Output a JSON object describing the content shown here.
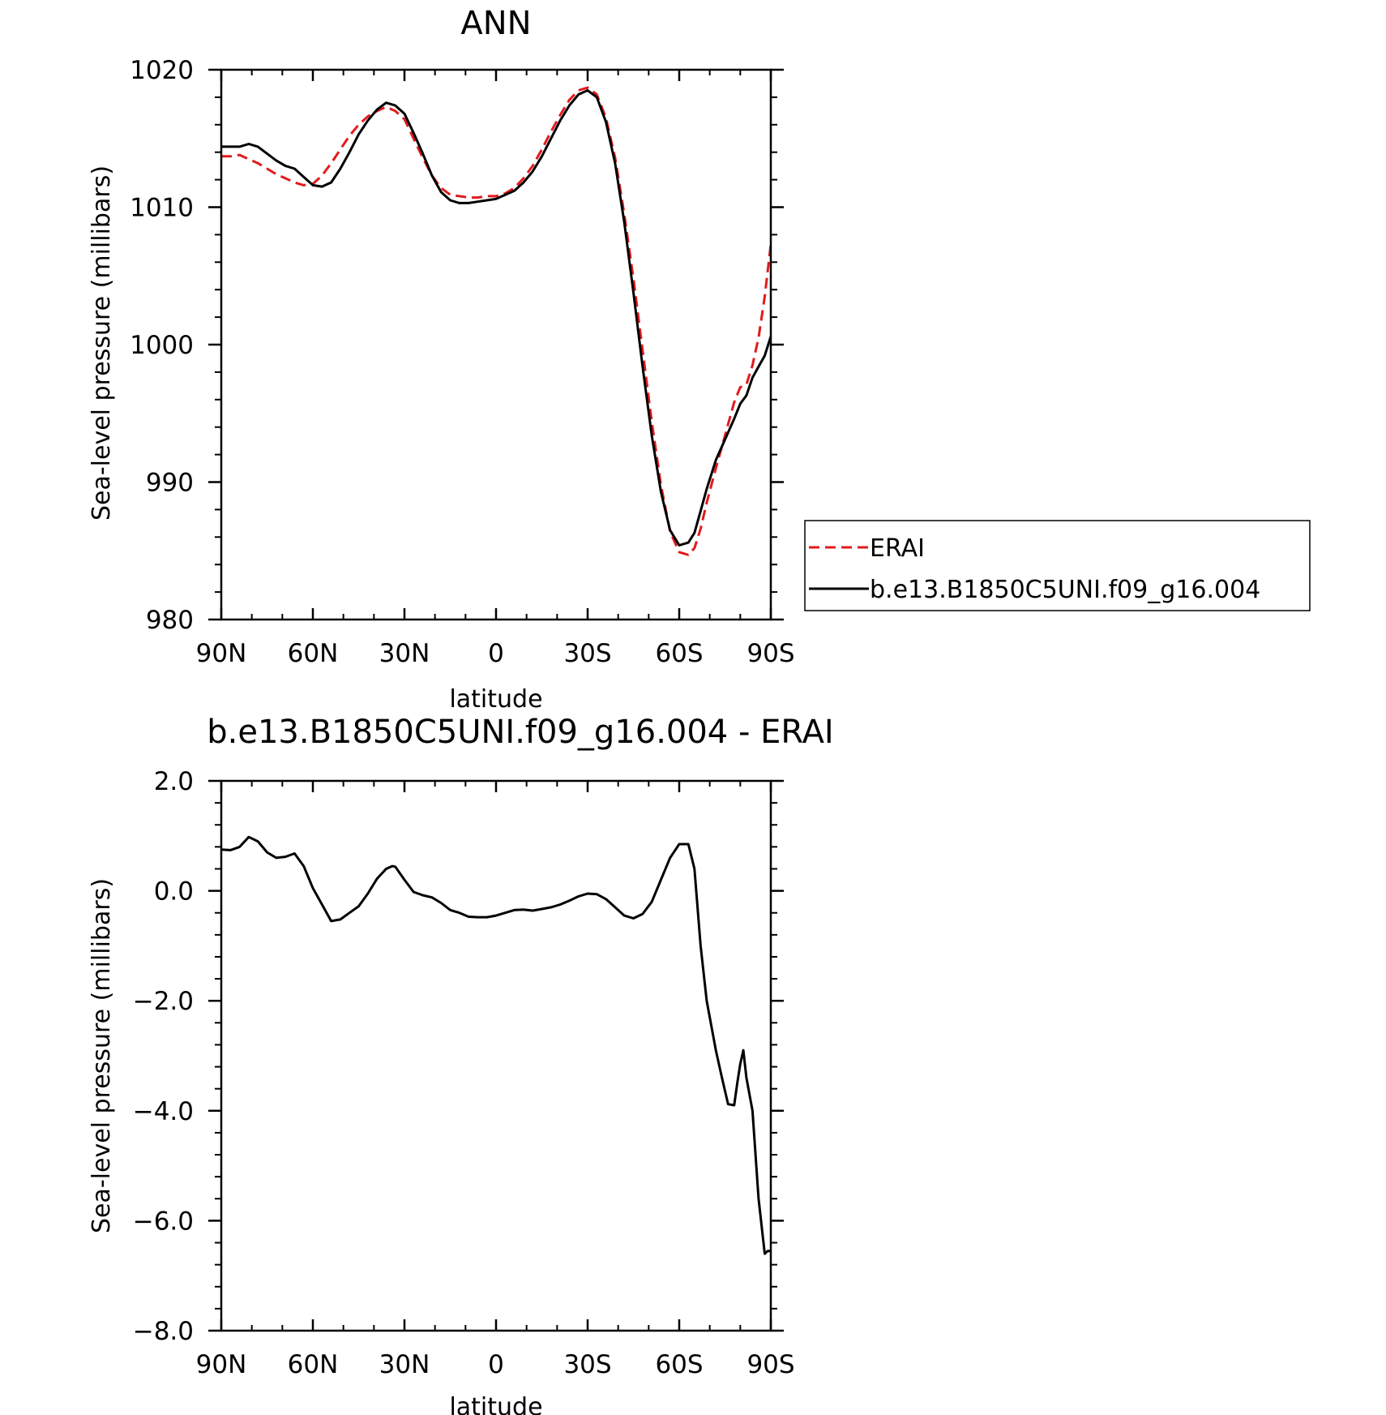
{
  "chart_data": [
    {
      "type": "line",
      "title": "ANN",
      "xlabel": "latitude",
      "ylabel": "Sea-level pressure (millibars)",
      "x_range": [
        90,
        -90
      ],
      "xticks": [
        90,
        60,
        30,
        0,
        -30,
        -60,
        -90
      ],
      "xtick_labels": [
        "90N",
        "60N",
        "30N",
        "0",
        "30S",
        "60S",
        "90S"
      ],
      "ylim": [
        980,
        1020
      ],
      "yticks": [
        980,
        990,
        1000,
        1010,
        1020
      ],
      "ytick_labels": [
        "980",
        "990",
        "1000",
        "1010",
        "1020"
      ],
      "grid": false,
      "legend_position": "right",
      "series": [
        {
          "name": "ERAI",
          "color": "#e31a1c",
          "dash": "dashed",
          "x": [
            90,
            87,
            84,
            81,
            78,
            75,
            72,
            69,
            66,
            63,
            60,
            57,
            54,
            51,
            48,
            45,
            42,
            39,
            36,
            33,
            30,
            27,
            24,
            21,
            18,
            15,
            12,
            9,
            6,
            3,
            0,
            -3,
            -6,
            -9,
            -12,
            -15,
            -18,
            -21,
            -24,
            -27,
            -30,
            -33,
            -36,
            -39,
            -42,
            -45,
            -48,
            -51,
            -54,
            -57,
            -60,
            -63,
            -65,
            -67,
            -69,
            -72,
            -75,
            -78,
            -80,
            -82,
            -84,
            -86,
            -88,
            -90
          ],
          "y": [
            1013.7,
            1013.7,
            1013.8,
            1013.5,
            1013.2,
            1012.8,
            1012.4,
            1012.1,
            1011.8,
            1011.6,
            1011.7,
            1012.3,
            1013.2,
            1014.2,
            1015.2,
            1016.0,
            1016.6,
            1017.0,
            1017.3,
            1017.0,
            1016.4,
            1015.0,
            1013.6,
            1012.3,
            1011.4,
            1010.9,
            1010.8,
            1010.7,
            1010.7,
            1010.8,
            1010.8,
            1011.0,
            1011.4,
            1012.1,
            1013.0,
            1014.2,
            1015.5,
            1016.7,
            1017.8,
            1018.5,
            1018.7,
            1018.2,
            1016.5,
            1013.6,
            1009.5,
            1004.8,
            999.6,
            994.4,
            989.8,
            986.4,
            984.9,
            984.7,
            985.2,
            986.6,
            988.5,
            991.0,
            993.4,
            995.8,
            996.9,
            997.1,
            998.5,
            1000.5,
            1003.5,
            1007.3
          ]
        },
        {
          "name": "b.e13.B1850C5UNI.f09_g16.004",
          "color": "#000000",
          "dash": "solid",
          "x": [
            90,
            87,
            84,
            81,
            78,
            75,
            72,
            69,
            66,
            63,
            60,
            57,
            54,
            51,
            48,
            45,
            42,
            39,
            36,
            33,
            30,
            27,
            24,
            21,
            18,
            15,
            12,
            9,
            6,
            3,
            0,
            -3,
            -6,
            -9,
            -12,
            -15,
            -18,
            -21,
            -24,
            -27,
            -30,
            -33,
            -36,
            -39,
            -42,
            -45,
            -48,
            -51,
            -54,
            -57,
            -60,
            -63,
            -65,
            -67,
            -69,
            -72,
            -75,
            -78,
            -80,
            -82,
            -84,
            -86,
            -88,
            -90
          ],
          "y": [
            1014.4,
            1014.4,
            1014.4,
            1014.6,
            1014.4,
            1013.9,
            1013.4,
            1013.0,
            1012.8,
            1012.2,
            1011.6,
            1011.5,
            1011.8,
            1012.8,
            1014.0,
            1015.3,
            1016.3,
            1017.1,
            1017.6,
            1017.4,
            1016.8,
            1015.4,
            1013.9,
            1012.3,
            1011.1,
            1010.5,
            1010.3,
            1010.3,
            1010.4,
            1010.5,
            1010.6,
            1010.9,
            1011.2,
            1011.8,
            1012.6,
            1013.7,
            1015.0,
            1016.3,
            1017.4,
            1018.2,
            1018.5,
            1018.0,
            1016.2,
            1013.2,
            1008.9,
            1003.8,
            998.4,
            993.4,
            989.3,
            986.5,
            985.4,
            985.6,
            986.3,
            987.9,
            989.5,
            991.6,
            993.1,
            994.6,
            995.7,
            996.3,
            997.6,
            998.4,
            999.2,
            1000.6
          ]
        }
      ]
    },
    {
      "type": "line",
      "title": "b.e13.B1850C5UNI.f09_g16.004 - ERAI",
      "xlabel": "latitude",
      "ylabel": "Sea-level pressure (millibars)",
      "x_range": [
        90,
        -90
      ],
      "xticks": [
        90,
        60,
        30,
        0,
        -30,
        -60,
        -90
      ],
      "xtick_labels": [
        "90N",
        "60N",
        "30N",
        "0",
        "30S",
        "60S",
        "90S"
      ],
      "ylim": [
        -8.0,
        2.0
      ],
      "yticks": [
        -8.0,
        -6.0,
        -4.0,
        -2.0,
        0.0,
        2.0
      ],
      "ytick_labels": [
        "−8.0",
        "−6.0",
        "−4.0",
        "−2.0",
        "0.0",
        "2.0"
      ],
      "grid": false,
      "series": [
        {
          "color": "#000000",
          "dash": "solid",
          "x": [
            90,
            87,
            84,
            81,
            78,
            75,
            72,
            69,
            66,
            63,
            60,
            57,
            54,
            51,
            48,
            45,
            42,
            39,
            36,
            34,
            33,
            30,
            27,
            24,
            21,
            18,
            15,
            12,
            9,
            6,
            3,
            0,
            -3,
            -6,
            -9,
            -12,
            -15,
            -18,
            -21,
            -24,
            -27,
            -30,
            -33,
            -36,
            -39,
            -42,
            -45,
            -48,
            -51,
            -54,
            -57,
            -60,
            -63,
            -65,
            -66,
            -67,
            -69,
            -72,
            -74,
            -76,
            -78,
            -79,
            -80,
            -81,
            -82,
            -84,
            -86,
            -88,
            -89,
            -90
          ],
          "y": [
            0.75,
            0.74,
            0.8,
            0.98,
            0.9,
            0.7,
            0.6,
            0.62,
            0.68,
            0.45,
            0.05,
            -0.25,
            -0.55,
            -0.52,
            -0.4,
            -0.28,
            -0.05,
            0.22,
            0.4,
            0.45,
            0.44,
            0.2,
            -0.02,
            -0.08,
            -0.12,
            -0.22,
            -0.35,
            -0.4,
            -0.47,
            -0.48,
            -0.48,
            -0.45,
            -0.4,
            -0.35,
            -0.34,
            -0.36,
            -0.33,
            -0.3,
            -0.25,
            -0.18,
            -0.1,
            -0.05,
            -0.06,
            -0.15,
            -0.3,
            -0.45,
            -0.5,
            -0.42,
            -0.2,
            0.2,
            0.6,
            0.85,
            0.85,
            0.4,
            -0.3,
            -1.0,
            -2.0,
            -2.9,
            -3.4,
            -3.88,
            -3.9,
            -3.5,
            -3.15,
            -2.9,
            -3.4,
            -4.0,
            -5.6,
            -6.6,
            -6.55,
            -6.55
          ]
        }
      ]
    }
  ]
}
